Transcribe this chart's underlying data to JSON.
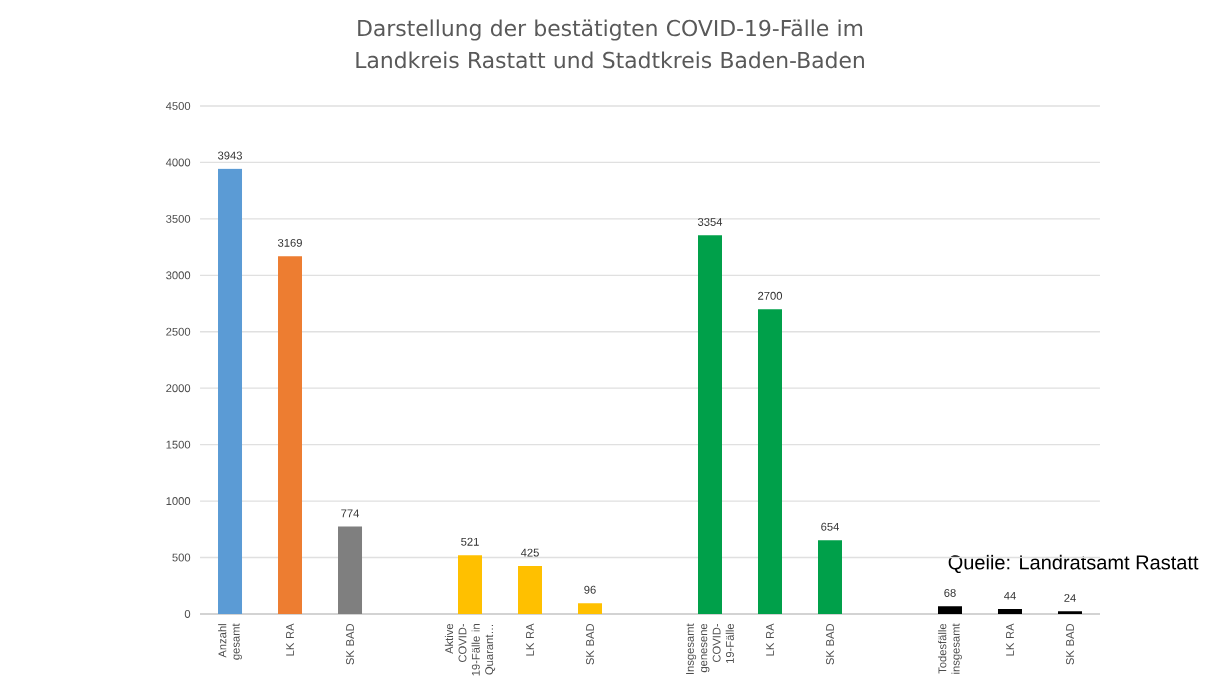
{
  "chart_data": {
    "type": "bar",
    "title": "Darstellung der bestätigten COVID-19-Fälle im Landkreis Rastatt und Stadtkreis Baden-Baden",
    "categories": [
      "Anzahl gesamt",
      "LK RA",
      "SK BAD",
      null,
      "Aktive COVID-19-Fälle in Quarant…",
      "LK RA",
      "SK BAD",
      null,
      "Insgesamt genesene COVID-19-Fälle",
      "LK RA",
      "SK BAD",
      null,
      "Todesfälle insgesamt",
      "LK RA",
      "SK BAD"
    ],
    "values": [
      3943,
      3169,
      774,
      null,
      521,
      425,
      96,
      null,
      3354,
      2700,
      654,
      null,
      68,
      44,
      24
    ],
    "colors": [
      "#5b9bd5",
      "#ed7d31",
      "#7f7f7f",
      "#ffffff",
      "#ffc000",
      "#ffc000",
      "#ffc000",
      "#ffffff",
      "#00a04a",
      "#00a04a",
      "#00a04a",
      "#ffffff",
      "#000000",
      "#000000",
      "#000000"
    ],
    "ylim": [
      0,
      4500
    ],
    "yticks": [
      0,
      500,
      1000,
      1500,
      2000,
      2500,
      3000,
      3500,
      4000,
      4500
    ],
    "grid": "y",
    "data_labels": true,
    "annotations": [
      "Quelle: Landratsamt Rastatt"
    ]
  }
}
